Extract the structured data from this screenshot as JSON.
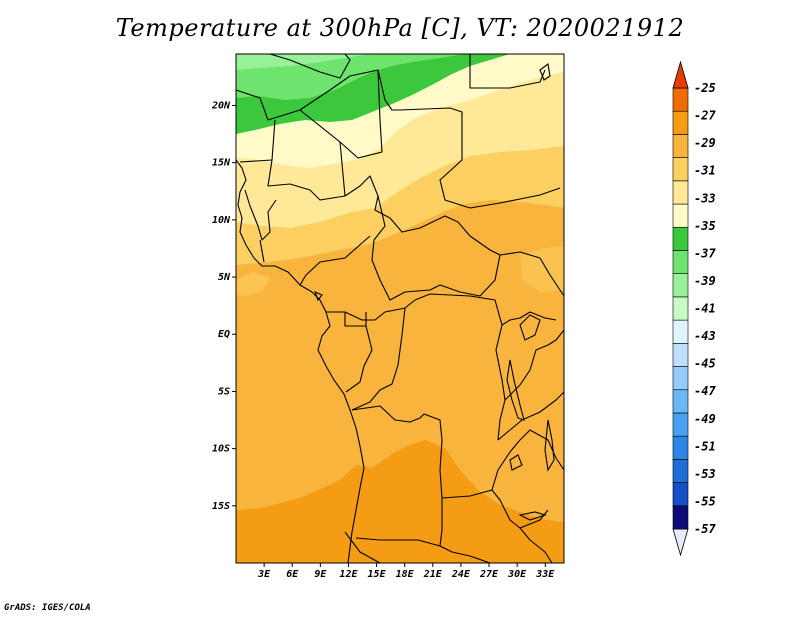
{
  "title": "Temperature at 300hPa [C], VT: 2020021912",
  "credit": "GrADS: IGES/COLA",
  "map": {
    "lon_range": [
      0,
      35
    ],
    "lat_range": [
      -20,
      24.5
    ],
    "lat_labels": [
      {
        "lat": 20,
        "text": "20N"
      },
      {
        "lat": 15,
        "text": "15N"
      },
      {
        "lat": 10,
        "text": "10N"
      },
      {
        "lat": 5,
        "text": "5N"
      },
      {
        "lat": 0,
        "text": "EQ"
      },
      {
        "lat": -5,
        "text": "5S"
      },
      {
        "lat": -10,
        "text": "10S"
      },
      {
        "lat": -15,
        "text": "15S"
      }
    ],
    "lon_labels": [
      {
        "lon": 3,
        "text": "3E"
      },
      {
        "lon": 6,
        "text": "6E"
      },
      {
        "lon": 9,
        "text": "9E"
      },
      {
        "lon": 12,
        "text": "12E"
      },
      {
        "lon": 15,
        "text": "15E"
      },
      {
        "lon": 18,
        "text": "18E"
      },
      {
        "lon": 21,
        "text": "21E"
      },
      {
        "lon": 24,
        "text": "24E"
      },
      {
        "lon": 27,
        "text": "27E"
      },
      {
        "lon": 30,
        "text": "30E"
      },
      {
        "lon": 33,
        "text": "33E"
      }
    ]
  },
  "colorbar": {
    "colors": [
      "#e8e8ff",
      "#0c0c78",
      "#1450c8",
      "#1e6ed8",
      "#2c86e6",
      "#4aa0f0",
      "#6cb8f6",
      "#96ccfa",
      "#bee0fc",
      "#e0f4fe",
      "#c8fac8",
      "#98f098",
      "#6ee46e",
      "#3cc83c",
      "#fffac8",
      "#ffe898",
      "#fcd060",
      "#f8b43c",
      "#f49c14",
      "#f06c00",
      "#e83c00"
    ],
    "labels": [
      "-25",
      "-27",
      "-29",
      "-31",
      "-33",
      "-35",
      "-37",
      "-39",
      "-41",
      "-43",
      "-45",
      "-47",
      "-49",
      "-51",
      "-53",
      "-55",
      "-57"
    ]
  }
}
